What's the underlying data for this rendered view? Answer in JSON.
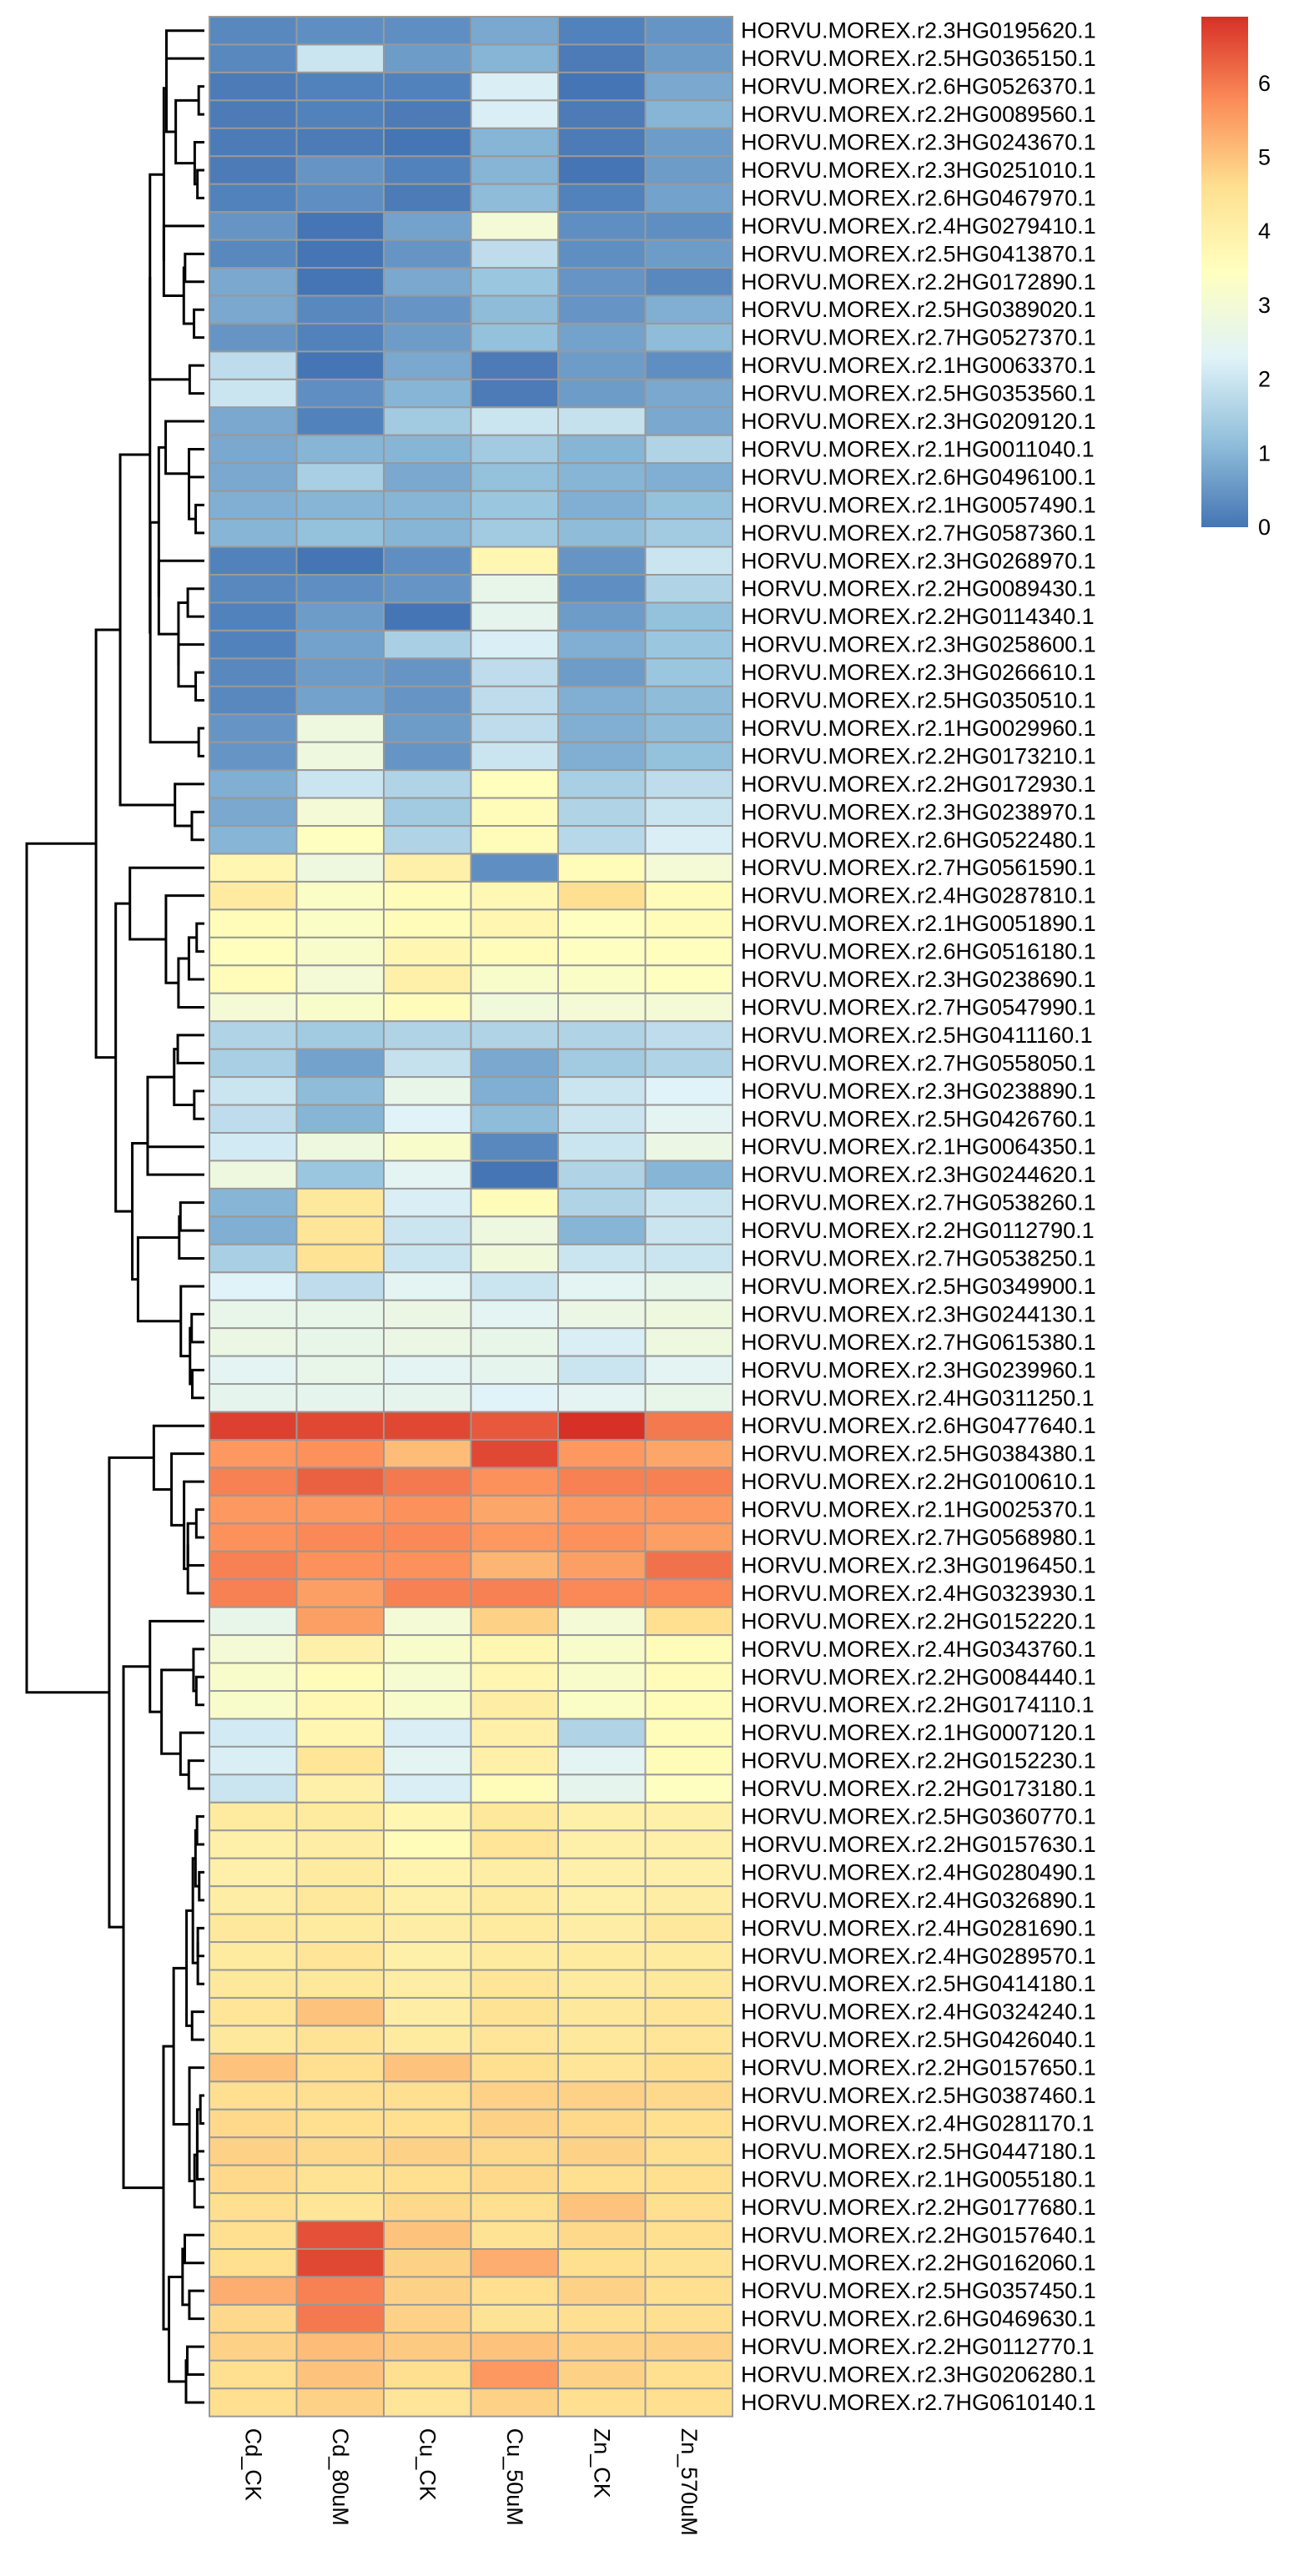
{
  "chart_data": {
    "type": "heatmap",
    "columns": [
      "Cd_CK",
      "Cd_80uM",
      "Cu_CK",
      "Cu_50uM",
      "Zn_CK",
      "Zn_570uM"
    ],
    "rows": [
      {
        "gene": "HORVU.MOREX.r2.3HG0195620.1",
        "values": [
          0.3,
          0.4,
          0.4,
          0.8,
          0.2,
          0.5
        ]
      },
      {
        "gene": "HORVU.MOREX.r2.5HG0365150.1",
        "values": [
          0.3,
          2.0,
          0.6,
          1.0,
          0.1,
          0.6
        ]
      },
      {
        "gene": "HORVU.MOREX.r2.6HG0526370.1",
        "values": [
          0.1,
          0.2,
          0.2,
          2.2,
          0.0,
          0.8
        ]
      },
      {
        "gene": "HORVU.MOREX.r2.2HG0089560.1",
        "values": [
          0.1,
          0.2,
          0.1,
          2.2,
          0.1,
          1.0
        ]
      },
      {
        "gene": "HORVU.MOREX.r2.3HG0243670.1",
        "values": [
          0.1,
          0.1,
          0.0,
          1.0,
          0.1,
          0.6
        ]
      },
      {
        "gene": "HORVU.MOREX.r2.3HG0251010.1",
        "values": [
          0.1,
          0.5,
          0.2,
          1.0,
          0.0,
          0.6
        ]
      },
      {
        "gene": "HORVU.MOREX.r2.6HG0467970.1",
        "values": [
          0.2,
          0.4,
          0.1,
          1.1,
          0.2,
          0.7
        ]
      },
      {
        "gene": "HORVU.MOREX.r2.4HG0279410.1",
        "values": [
          0.5,
          0.0,
          0.7,
          3.0,
          0.4,
          0.4
        ]
      },
      {
        "gene": "HORVU.MOREX.r2.5HG0413870.1",
        "values": [
          0.3,
          0.0,
          0.5,
          1.8,
          0.4,
          0.6
        ]
      },
      {
        "gene": "HORVU.MOREX.r2.2HG0172890.1",
        "values": [
          0.8,
          0.0,
          0.8,
          1.3,
          0.5,
          0.3
        ]
      },
      {
        "gene": "HORVU.MOREX.r2.5HG0389020.1",
        "values": [
          0.8,
          0.3,
          0.5,
          1.1,
          0.5,
          0.9
        ]
      },
      {
        "gene": "HORVU.MOREX.r2.7HG0527370.1",
        "values": [
          0.5,
          0.2,
          0.6,
          1.2,
          0.7,
          1.1
        ]
      },
      {
        "gene": "HORVU.MOREX.r2.1HG0063370.1",
        "values": [
          1.8,
          0.0,
          0.8,
          0.1,
          0.6,
          0.4
        ]
      },
      {
        "gene": "HORVU.MOREX.r2.5HG0353560.1",
        "values": [
          2.0,
          0.4,
          1.0,
          0.1,
          0.6,
          0.8
        ]
      },
      {
        "gene": "HORVU.MOREX.r2.3HG0209120.1",
        "values": [
          0.8,
          0.2,
          1.4,
          2.0,
          1.9,
          0.8
        ]
      },
      {
        "gene": "HORVU.MOREX.r2.1HG0011040.1",
        "values": [
          0.8,
          1.0,
          1.0,
          1.4,
          1.0,
          1.6
        ]
      },
      {
        "gene": "HORVU.MOREX.r2.6HG0496100.1",
        "values": [
          0.8,
          1.5,
          0.8,
          1.2,
          1.0,
          0.9
        ]
      },
      {
        "gene": "HORVU.MOREX.r2.1HG0057490.1",
        "values": [
          0.9,
          1.0,
          1.0,
          1.3,
          0.9,
          1.2
        ]
      },
      {
        "gene": "HORVU.MOREX.r2.7HG0587360.1",
        "values": [
          1.0,
          1.2,
          1.0,
          1.4,
          1.1,
          1.4
        ]
      },
      {
        "gene": "HORVU.MOREX.r2.3HG0268970.1",
        "values": [
          0.2,
          0.0,
          0.4,
          3.8,
          0.5,
          2.0
        ]
      },
      {
        "gene": "HORVU.MOREX.r2.2HG0089430.1",
        "values": [
          0.3,
          0.4,
          0.5,
          2.6,
          0.4,
          1.6
        ]
      },
      {
        "gene": "HORVU.MOREX.r2.2HG0114340.1",
        "values": [
          0.2,
          0.6,
          0.0,
          2.5,
          0.6,
          1.2
        ]
      },
      {
        "gene": "HORVU.MOREX.r2.3HG0258600.1",
        "values": [
          0.2,
          0.7,
          1.5,
          2.2,
          0.9,
          1.3
        ]
      },
      {
        "gene": "HORVU.MOREX.r2.3HG0266610.1",
        "values": [
          0.3,
          0.6,
          0.5,
          1.8,
          0.6,
          1.3
        ]
      },
      {
        "gene": "HORVU.MOREX.r2.5HG0350510.1",
        "values": [
          0.3,
          0.7,
          0.5,
          1.8,
          0.9,
          1.1
        ]
      },
      {
        "gene": "HORVU.MOREX.r2.1HG0029960.1",
        "values": [
          0.5,
          2.8,
          0.6,
          1.8,
          0.9,
          1.1
        ]
      },
      {
        "gene": "HORVU.MOREX.r2.2HG0173210.1",
        "values": [
          0.5,
          2.8,
          0.5,
          2.0,
          0.9,
          1.2
        ]
      },
      {
        "gene": "HORVU.MOREX.r2.2HG0172930.1",
        "values": [
          0.9,
          2.0,
          1.6,
          3.5,
          1.5,
          1.8
        ]
      },
      {
        "gene": "HORVU.MOREX.r2.3HG0238970.1",
        "values": [
          0.8,
          3.0,
          1.4,
          3.6,
          1.6,
          2.0
        ]
      },
      {
        "gene": "HORVU.MOREX.r2.6HG0522480.1",
        "values": [
          1.0,
          3.4,
          1.6,
          3.6,
          1.7,
          2.2
        ]
      },
      {
        "gene": "HORVU.MOREX.r2.7HG0561590.1",
        "values": [
          3.8,
          2.8,
          4.0,
          0.4,
          3.6,
          3.0
        ]
      },
      {
        "gene": "HORVU.MOREX.r2.4HG0287810.1",
        "values": [
          4.2,
          3.3,
          3.6,
          3.7,
          4.6,
          3.6
        ]
      },
      {
        "gene": "HORVU.MOREX.r2.1HG0051890.1",
        "values": [
          3.6,
          3.3,
          3.6,
          3.8,
          3.4,
          3.6
        ]
      },
      {
        "gene": "HORVU.MOREX.r2.6HG0516180.1",
        "values": [
          3.5,
          3.2,
          3.8,
          3.6,
          3.4,
          3.5
        ]
      },
      {
        "gene": "HORVU.MOREX.r2.3HG0238690.1",
        "values": [
          3.6,
          3.0,
          4.0,
          3.2,
          3.3,
          3.4
        ]
      },
      {
        "gene": "HORVU.MOREX.r2.7HG0547990.1",
        "values": [
          3.0,
          3.2,
          3.6,
          2.9,
          3.0,
          3.0
        ]
      },
      {
        "gene": "HORVU.MOREX.r2.5HG0411160.1",
        "values": [
          1.6,
          1.4,
          1.6,
          1.6,
          1.6,
          1.8
        ]
      },
      {
        "gene": "HORVU.MOREX.r2.7HG0558050.1",
        "values": [
          1.5,
          0.7,
          1.9,
          0.8,
          1.4,
          1.6
        ]
      },
      {
        "gene": "HORVU.MOREX.r2.3HG0238890.1",
        "values": [
          2.0,
          1.1,
          2.6,
          0.9,
          2.0,
          2.3
        ]
      },
      {
        "gene": "HORVU.MOREX.r2.5HG0426760.1",
        "values": [
          1.8,
          1.0,
          2.3,
          1.1,
          2.0,
          2.4
        ]
      },
      {
        "gene": "HORVU.MOREX.r2.1HG0064350.1",
        "values": [
          2.1,
          2.8,
          3.2,
          0.3,
          2.0,
          2.7
        ]
      },
      {
        "gene": "HORVU.MOREX.r2.3HG0244620.1",
        "values": [
          2.8,
          1.3,
          2.4,
          0.0,
          1.6,
          1.0
        ]
      },
      {
        "gene": "HORVU.MOREX.r2.7HG0538260.1",
        "values": [
          1.0,
          4.3,
          2.2,
          3.6,
          1.6,
          2.0
        ]
      },
      {
        "gene": "HORVU.MOREX.r2.2HG0112790.1",
        "values": [
          0.9,
          4.4,
          2.0,
          2.8,
          1.0,
          2.0
        ]
      },
      {
        "gene": "HORVU.MOREX.r2.7HG0538250.1",
        "values": [
          1.5,
          4.5,
          2.0,
          2.9,
          2.0,
          2.0
        ]
      },
      {
        "gene": "HORVU.MOREX.r2.5HG0349900.1",
        "values": [
          2.3,
          1.8,
          2.4,
          2.0,
          2.4,
          2.6
        ]
      },
      {
        "gene": "HORVU.MOREX.r2.3HG0244130.1",
        "values": [
          2.6,
          2.6,
          2.7,
          2.4,
          2.7,
          2.8
        ]
      },
      {
        "gene": "HORVU.MOREX.r2.7HG0615380.1",
        "values": [
          2.7,
          2.6,
          2.7,
          2.6,
          2.2,
          2.8
        ]
      },
      {
        "gene": "HORVU.MOREX.r2.3HG0239960.1",
        "values": [
          2.4,
          2.6,
          2.4,
          2.5,
          2.0,
          2.4
        ]
      },
      {
        "gene": "HORVU.MOREX.r2.4HG0311250.1",
        "values": [
          2.5,
          2.5,
          2.5,
          2.3,
          2.4,
          2.6
        ]
      },
      {
        "gene": "HORVU.MOREX.r2.6HG0477640.1",
        "values": [
          6.7,
          6.6,
          6.6,
          6.4,
          6.9,
          6.0
        ]
      },
      {
        "gene": "HORVU.MOREX.r2.5HG0384380.1",
        "values": [
          5.6,
          5.7,
          5.1,
          6.6,
          5.6,
          5.4
        ]
      },
      {
        "gene": "HORVU.MOREX.r2.2HG0100610.1",
        "values": [
          5.9,
          6.3,
          6.0,
          5.7,
          5.9,
          5.9
        ]
      },
      {
        "gene": "HORVU.MOREX.r2.1HG0025370.1",
        "values": [
          5.6,
          5.6,
          5.7,
          5.4,
          5.6,
          5.6
        ]
      },
      {
        "gene": "HORVU.MOREX.r2.7HG0568980.1",
        "values": [
          5.7,
          5.8,
          5.8,
          5.6,
          5.7,
          5.5
        ]
      },
      {
        "gene": "HORVU.MOREX.r2.3HG0196450.1",
        "values": [
          5.9,
          5.7,
          5.7,
          5.2,
          5.5,
          6.1
        ]
      },
      {
        "gene": "HORVU.MOREX.r2.4HG0323930.1",
        "values": [
          5.9,
          5.5,
          5.9,
          5.9,
          5.8,
          5.8
        ]
      },
      {
        "gene": "HORVU.MOREX.r2.2HG0152220.1",
        "values": [
          2.6,
          5.5,
          3.0,
          4.8,
          3.0,
          4.6
        ]
      },
      {
        "gene": "HORVU.MOREX.r2.4HG0343760.1",
        "values": [
          3.0,
          4.0,
          3.2,
          3.8,
          3.2,
          3.6
        ]
      },
      {
        "gene": "HORVU.MOREX.r2.2HG0084440.1",
        "values": [
          3.2,
          3.6,
          3.1,
          3.8,
          3.2,
          3.6
        ]
      },
      {
        "gene": "HORVU.MOREX.r2.2HG0174110.1",
        "values": [
          3.2,
          3.7,
          3.2,
          4.1,
          3.3,
          3.6
        ]
      },
      {
        "gene": "HORVU.MOREX.r2.1HG0007120.1",
        "values": [
          2.1,
          3.8,
          2.2,
          4.0,
          1.6,
          3.6
        ]
      },
      {
        "gene": "HORVU.MOREX.r2.2HG0152230.1",
        "values": [
          2.2,
          4.4,
          2.4,
          4.0,
          2.4,
          3.6
        ]
      },
      {
        "gene": "HORVU.MOREX.r2.2HG0173180.1",
        "values": [
          2.0,
          4.0,
          2.2,
          3.6,
          2.5,
          3.4
        ]
      },
      {
        "gene": "HORVU.MOREX.r2.5HG0360770.1",
        "values": [
          4.2,
          4.2,
          3.8,
          4.3,
          4.0,
          4.0
        ]
      },
      {
        "gene": "HORVU.MOREX.r2.2HG0157630.1",
        "values": [
          4.0,
          4.1,
          3.6,
          4.4,
          4.0,
          4.0
        ]
      },
      {
        "gene": "HORVU.MOREX.r2.4HG0280490.1",
        "values": [
          4.0,
          4.2,
          3.9,
          4.1,
          4.0,
          4.0
        ]
      },
      {
        "gene": "HORVU.MOREX.r2.4HG0326890.1",
        "values": [
          4.1,
          4.3,
          4.0,
          4.2,
          4.0,
          4.1
        ]
      },
      {
        "gene": "HORVU.MOREX.r2.4HG0281690.1",
        "values": [
          4.3,
          4.2,
          4.1,
          4.2,
          4.1,
          4.3
        ]
      },
      {
        "gene": "HORVU.MOREX.r2.4HG0289570.1",
        "values": [
          4.2,
          4.4,
          4.0,
          4.2,
          4.2,
          4.2
        ]
      },
      {
        "gene": "HORVU.MOREX.r2.5HG0414180.1",
        "values": [
          4.3,
          4.3,
          4.1,
          4.4,
          4.2,
          4.3
        ]
      },
      {
        "gene": "HORVU.MOREX.r2.4HG0324240.1",
        "values": [
          4.4,
          5.0,
          4.1,
          4.5,
          4.3,
          4.4
        ]
      },
      {
        "gene": "HORVU.MOREX.r2.5HG0426040.1",
        "values": [
          4.3,
          4.5,
          4.2,
          4.4,
          4.3,
          4.4
        ]
      },
      {
        "gene": "HORVU.MOREX.r2.2HG0157650.1",
        "values": [
          5.0,
          4.6,
          5.0,
          4.6,
          4.4,
          4.6
        ]
      },
      {
        "gene": "HORVU.MOREX.r2.5HG0387460.1",
        "values": [
          4.6,
          4.6,
          4.6,
          4.8,
          4.8,
          4.7
        ]
      },
      {
        "gene": "HORVU.MOREX.r2.4HG0281170.1",
        "values": [
          4.7,
          4.6,
          4.6,
          4.8,
          4.7,
          4.6
        ]
      },
      {
        "gene": "HORVU.MOREX.r2.5HG0447180.1",
        "values": [
          4.8,
          4.7,
          4.8,
          4.7,
          4.8,
          4.6
        ]
      },
      {
        "gene": "HORVU.MOREX.r2.1HG0055180.1",
        "values": [
          4.7,
          4.5,
          4.6,
          4.7,
          4.6,
          4.6
        ]
      },
      {
        "gene": "HORVU.MOREX.r2.2HG0177680.1",
        "values": [
          4.6,
          4.4,
          4.7,
          4.6,
          5.0,
          4.6
        ]
      },
      {
        "gene": "HORVU.MOREX.r2.2HG0157640.1",
        "values": [
          4.6,
          6.5,
          5.0,
          4.5,
          4.7,
          4.6
        ]
      },
      {
        "gene": "HORVU.MOREX.r2.2HG0162060.1",
        "values": [
          4.6,
          6.6,
          4.8,
          5.3,
          4.6,
          4.5
        ]
      },
      {
        "gene": "HORVU.MOREX.r2.5HG0357450.1",
        "values": [
          5.3,
          5.9,
          4.8,
          4.6,
          4.8,
          4.6
        ]
      },
      {
        "gene": "HORVU.MOREX.r2.6HG0469630.1",
        "values": [
          4.7,
          6.0,
          4.8,
          4.5,
          4.6,
          4.6
        ]
      },
      {
        "gene": "HORVU.MOREX.r2.2HG0112770.1",
        "values": [
          4.8,
          5.1,
          4.9,
          5.0,
          4.8,
          4.8
        ]
      },
      {
        "gene": "HORVU.MOREX.r2.3HG0206280.1",
        "values": [
          4.6,
          5.0,
          4.6,
          5.6,
          4.8,
          4.6
        ]
      },
      {
        "gene": "HORVU.MOREX.r2.7HG0610140.1",
        "values": [
          4.6,
          4.8,
          4.4,
          4.8,
          4.6,
          4.6
        ]
      }
    ],
    "color_scale": {
      "min": 0,
      "max": 6.9,
      "stops": [
        {
          "value": 0,
          "color": "#4575B4"
        },
        {
          "value": 1.15,
          "color": "#91BFDB"
        },
        {
          "value": 2.3,
          "color": "#E0F3F8"
        },
        {
          "value": 3.45,
          "color": "#FFFFBF"
        },
        {
          "value": 4.6,
          "color": "#FEE090"
        },
        {
          "value": 5.75,
          "color": "#FC8D59"
        },
        {
          "value": 6.9,
          "color": "#D73027"
        }
      ]
    },
    "legend_ticks": [
      "0",
      "1",
      "2",
      "3",
      "4",
      "5",
      "6"
    ],
    "legend_position": "top-right",
    "row_dendrogram": true,
    "cell_border_color": "#999999"
  }
}
